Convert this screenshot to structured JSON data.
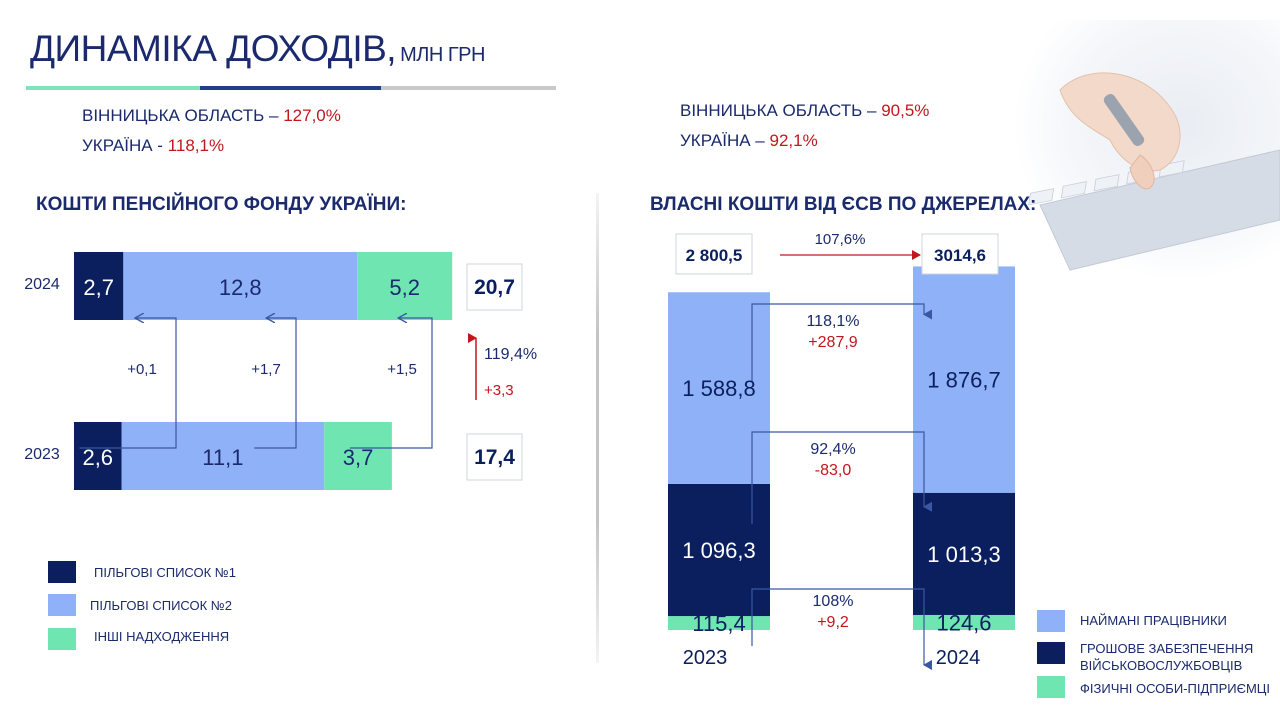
{
  "header": {
    "title": "ДИНАМІКА ДОХОДІВ,",
    "unit": "МЛН ГРН"
  },
  "colors": {
    "title": "#1a2a6c",
    "dark": "#0b1f5e",
    "light": "#8fb1f7",
    "green": "#6fe6b2",
    "red": "#c0171d"
  },
  "left_stats": [
    {
      "label": "ВІННИЦЬКА  ОБЛАСТЬ –",
      "value": "127,0%"
    },
    {
      "label": "УКРАЇНА  -",
      "value": "118,1%"
    }
  ],
  "right_stats": [
    {
      "label": "ВІННИЦЬКА  ОБЛАСТЬ –",
      "value": "90,5%"
    },
    {
      "label": "УКРАЇНА  –",
      "value": "92,1%"
    }
  ],
  "sections": {
    "left": "КОШТИ ПЕНСІЙНОГО ФОНДУ УКРАЇНИ:",
    "right": "ВЛАСНІ КОШТИ ВІД ЄСВ ПО ДЖЕРЕЛАХ:"
  },
  "chart_data": [
    {
      "type": "bar",
      "orientation": "horizontal-stacked",
      "categories": [
        "2024",
        "2023"
      ],
      "series": [
        {
          "name": "ПІЛЬГОВІ СПИСОК №1",
          "values": [
            2.7,
            2.6
          ],
          "labels": [
            "2,7",
            "2,6"
          ]
        },
        {
          "name": "ПІЛЬГОВІ СПИСОК №2",
          "values": [
            12.8,
            11.1
          ],
          "labels": [
            "12,8",
            "11,1"
          ]
        },
        {
          "name": "ІНШІ  НАДХОДЖЕННЯ",
          "values": [
            5.2,
            3.7
          ],
          "labels": [
            "5,2",
            "3,7"
          ]
        }
      ],
      "totals": [
        "20,7",
        "17,4"
      ],
      "deltas": [
        "+0,1",
        "+1,7",
        "+1,5"
      ],
      "growth": {
        "percent": "119,4%",
        "abs": "+3,3"
      }
    },
    {
      "type": "bar",
      "orientation": "vertical-stacked",
      "categories": [
        "2023",
        "2024"
      ],
      "series": [
        {
          "name": "ФІЗИЧНІ ОСОБИ-ПІДПРИЄМЦІ",
          "values": [
            115.4,
            124.6
          ],
          "labels": [
            "115,4",
            "124,6"
          ]
        },
        {
          "name": "ГРОШОВЕ ЗАБЕЗПЕЧЕННЯ ВІЙСЬКОВОСЛУЖБОВЦІВ",
          "values": [
            1096.3,
            1013.3
          ],
          "labels": [
            "1 096,3",
            "1 013,3"
          ]
        },
        {
          "name": "НАЙМАНІ ПРАЦІВНИКИ",
          "values": [
            1588.8,
            1876.7
          ],
          "labels": [
            "1 588,8",
            "1 876,7"
          ]
        }
      ],
      "totals": [
        "2 800,5",
        "3014,6"
      ],
      "total_growth": "107,6%",
      "changes": [
        {
          "series": "НАЙМАНІ ПРАЦІВНИКИ",
          "percent": "118,1%",
          "abs": "+287,9"
        },
        {
          "series": "ГРОШОВЕ ЗАБЕЗПЕЧЕННЯ ВІЙСЬКОВОСЛУЖБОВЦІВ",
          "percent": "92,4%",
          "abs": "-83,0"
        },
        {
          "series": "ФІЗИЧНІ ОСОБИ-ПІДПРИЄМЦІ",
          "percent": "108%",
          "abs": "+9,2"
        }
      ],
      "legend": [
        "НАЙМАНІ ПРАЦІВНИКИ",
        "ГРОШОВЕ ЗАБЕЗПЕЧЕННЯ ВІЙСЬКОВОСЛУЖБОВЦІВ",
        "ФІЗИЧНІ ОСОБИ-ПІДПРИЄМЦІ"
      ]
    }
  ]
}
